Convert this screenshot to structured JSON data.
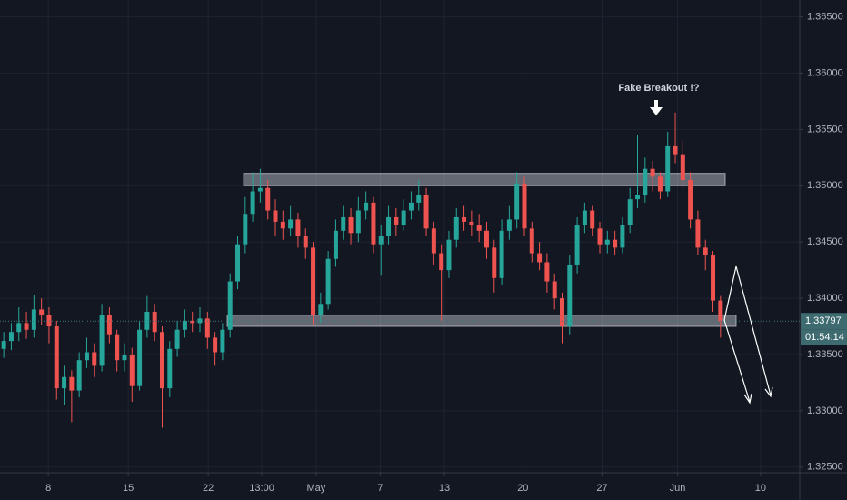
{
  "chart_data": {
    "type": "candlestick",
    "annotation": "Fake Breakout !?",
    "countdown": "01:54:14",
    "up_color": "#26a69a",
    "down_color": "#ef5350",
    "grid": true,
    "xlim": [
      0,
      106
    ],
    "ylim": [
      1.3245,
      1.3665
    ],
    "xticks": [
      {
        "value": 6.4,
        "label": "8"
      },
      {
        "value": 17.0,
        "label": "15"
      },
      {
        "value": 27.6,
        "label": "22"
      },
      {
        "value": 34.7,
        "label": "13:00"
      },
      {
        "value": 41.9,
        "label": "May"
      },
      {
        "value": 50.4,
        "label": "7"
      },
      {
        "value": 58.9,
        "label": "13"
      },
      {
        "value": 69.3,
        "label": "20"
      },
      {
        "value": 79.8,
        "label": "27"
      },
      {
        "value": 89.8,
        "label": "Jun"
      },
      {
        "value": 100.8,
        "label": "10"
      }
    ],
    "yticks": [
      {
        "value": 1.325,
        "label": "1.32500"
      },
      {
        "value": 1.33,
        "label": "1.33000"
      },
      {
        "value": 1.335,
        "label": "1.33500"
      },
      {
        "value": 1.34,
        "label": "1.34000"
      },
      {
        "value": 1.345,
        "label": "1.34500"
      },
      {
        "value": 1.35,
        "label": "1.35000"
      },
      {
        "value": 1.355,
        "label": "1.35500"
      },
      {
        "value": 1.36,
        "label": "1.36000"
      },
      {
        "value": 1.365,
        "label": "1.36500"
      }
    ],
    "zones": [
      {
        "from": 1.35,
        "to": 1.3511
      },
      {
        "from": 1.3375,
        "to": 1.3385
      }
    ],
    "open": [
      1.3355,
      1.3362,
      1.337,
      1.3378,
      1.3372,
      1.339,
      1.3385,
      1.3375,
      1.332,
      1.333,
      1.3318,
      1.3345,
      1.3352,
      1.334,
      1.3385,
      1.3368,
      1.3345,
      1.335,
      1.3322,
      1.3372,
      1.3388,
      1.337,
      1.332,
      1.3355,
      1.3372,
      1.338,
      1.3378,
      1.3382,
      1.3365,
      1.3352,
      1.3372,
      1.3415,
      1.3448,
      1.3475,
      1.3495,
      1.3498,
      1.3478,
      1.3468,
      1.3462,
      1.347,
      1.3455,
      1.3445,
      1.3385,
      1.3395,
      1.3435,
      1.346,
      1.3472,
      1.3458,
      1.3478,
      1.3485,
      1.3448,
      1.3455,
      1.3472,
      1.3465,
      1.3478,
      1.3485,
      1.3492,
      1.3462,
      1.344,
      1.3425,
      1.3452,
      1.3472,
      1.3468,
      1.3465,
      1.346,
      1.3445,
      1.3418,
      1.346,
      1.347,
      1.3502,
      1.3462,
      1.344,
      1.3432,
      1.3415,
      1.34,
      1.3375,
      1.343,
      1.3465,
      1.3478,
      1.3462,
      1.3448,
      1.3452,
      1.3445,
      1.3465,
      1.3488,
      1.3492,
      1.3515,
      1.3508,
      1.3495,
      1.3535,
      1.3528,
      1.3505,
      1.347,
      1.3445,
      1.3438,
      1.3398
    ],
    "high": [
      1.337,
      1.3378,
      1.3392,
      1.3388,
      1.3403,
      1.34,
      1.3392,
      1.338,
      1.334,
      1.3336,
      1.3352,
      1.3365,
      1.336,
      1.3395,
      1.3392,
      1.3372,
      1.336,
      1.3356,
      1.338,
      1.3402,
      1.3395,
      1.3375,
      1.3362,
      1.338,
      1.339,
      1.3388,
      1.3392,
      1.3388,
      1.337,
      1.3378,
      1.3422,
      1.3455,
      1.349,
      1.3512,
      1.3515,
      1.3505,
      1.3488,
      1.3478,
      1.3482,
      1.3476,
      1.3462,
      1.345,
      1.3405,
      1.3442,
      1.347,
      1.3482,
      1.348,
      1.349,
      1.3495,
      1.349,
      1.3465,
      1.3482,
      1.348,
      1.3488,
      1.3495,
      1.3505,
      1.3498,
      1.3468,
      1.3448,
      1.346,
      1.348,
      1.3482,
      1.3478,
      1.3475,
      1.3468,
      1.3452,
      1.347,
      1.3482,
      1.3512,
      1.3508,
      1.3468,
      1.345,
      1.344,
      1.3422,
      1.3405,
      1.3438,
      1.3472,
      1.3485,
      1.3482,
      1.3468,
      1.346,
      1.346,
      1.3472,
      1.3498,
      1.3545,
      1.3525,
      1.3522,
      1.3512,
      1.3548,
      1.3565,
      1.354,
      1.3512,
      1.3478,
      1.3452,
      1.3442,
      1.3402
    ],
    "low": [
      1.3347,
      1.3354,
      1.3362,
      1.3364,
      1.3365,
      1.3376,
      1.336,
      1.331,
      1.3305,
      1.329,
      1.3312,
      1.3338,
      1.333,
      1.3335,
      1.336,
      1.3335,
      1.3335,
      1.3308,
      1.3318,
      1.3365,
      1.3362,
      1.3285,
      1.3312,
      1.3348,
      1.3365,
      1.337,
      1.337,
      1.3355,
      1.334,
      1.3345,
      1.3365,
      1.3408,
      1.344,
      1.3468,
      1.3485,
      1.347,
      1.3455,
      1.3452,
      1.3455,
      1.3445,
      1.3435,
      1.3376,
      1.3378,
      1.339,
      1.3428,
      1.3452,
      1.3448,
      1.345,
      1.347,
      1.344,
      1.342,
      1.3448,
      1.3455,
      1.346,
      1.347,
      1.3478,
      1.3455,
      1.343,
      1.338,
      1.3418,
      1.3445,
      1.346,
      1.3455,
      1.345,
      1.3435,
      1.3405,
      1.3412,
      1.3452,
      1.3462,
      1.3455,
      1.3432,
      1.3425,
      1.3405,
      1.339,
      1.336,
      1.3368,
      1.3422,
      1.3458,
      1.3455,
      1.344,
      1.344,
      1.3438,
      1.344,
      1.3458,
      1.348,
      1.3485,
      1.3495,
      1.3488,
      1.349,
      1.352,
      1.3498,
      1.3462,
      1.3438,
      1.3425,
      1.3388,
      1.3365
    ],
    "close": [
      1.3362,
      1.337,
      1.3378,
      1.3372,
      1.339,
      1.3385,
      1.3375,
      1.332,
      1.333,
      1.3318,
      1.3345,
      1.3352,
      1.334,
      1.3385,
      1.3368,
      1.3345,
      1.335,
      1.3322,
      1.3372,
      1.3388,
      1.337,
      1.332,
      1.3355,
      1.3372,
      1.338,
      1.3378,
      1.3382,
      1.3365,
      1.3352,
      1.3372,
      1.3415,
      1.3448,
      1.3475,
      1.3495,
      1.3498,
      1.3478,
      1.3468,
      1.3462,
      1.347,
      1.3455,
      1.3445,
      1.3385,
      1.3395,
      1.3435,
      1.346,
      1.3472,
      1.3458,
      1.3478,
      1.3485,
      1.3448,
      1.3455,
      1.3472,
      1.3465,
      1.3478,
      1.3485,
      1.3492,
      1.3462,
      1.344,
      1.3425,
      1.3452,
      1.3472,
      1.3468,
      1.3465,
      1.346,
      1.3445,
      1.3418,
      1.346,
      1.347,
      1.3502,
      1.3462,
      1.344,
      1.3432,
      1.3415,
      1.34,
      1.3375,
      1.343,
      1.3465,
      1.3478,
      1.3462,
      1.3448,
      1.3452,
      1.3445,
      1.3465,
      1.3488,
      1.3492,
      1.3515,
      1.3508,
      1.3495,
      1.3535,
      1.3528,
      1.3505,
      1.347,
      1.3445,
      1.3438,
      1.3398,
      1.33797
    ]
  }
}
